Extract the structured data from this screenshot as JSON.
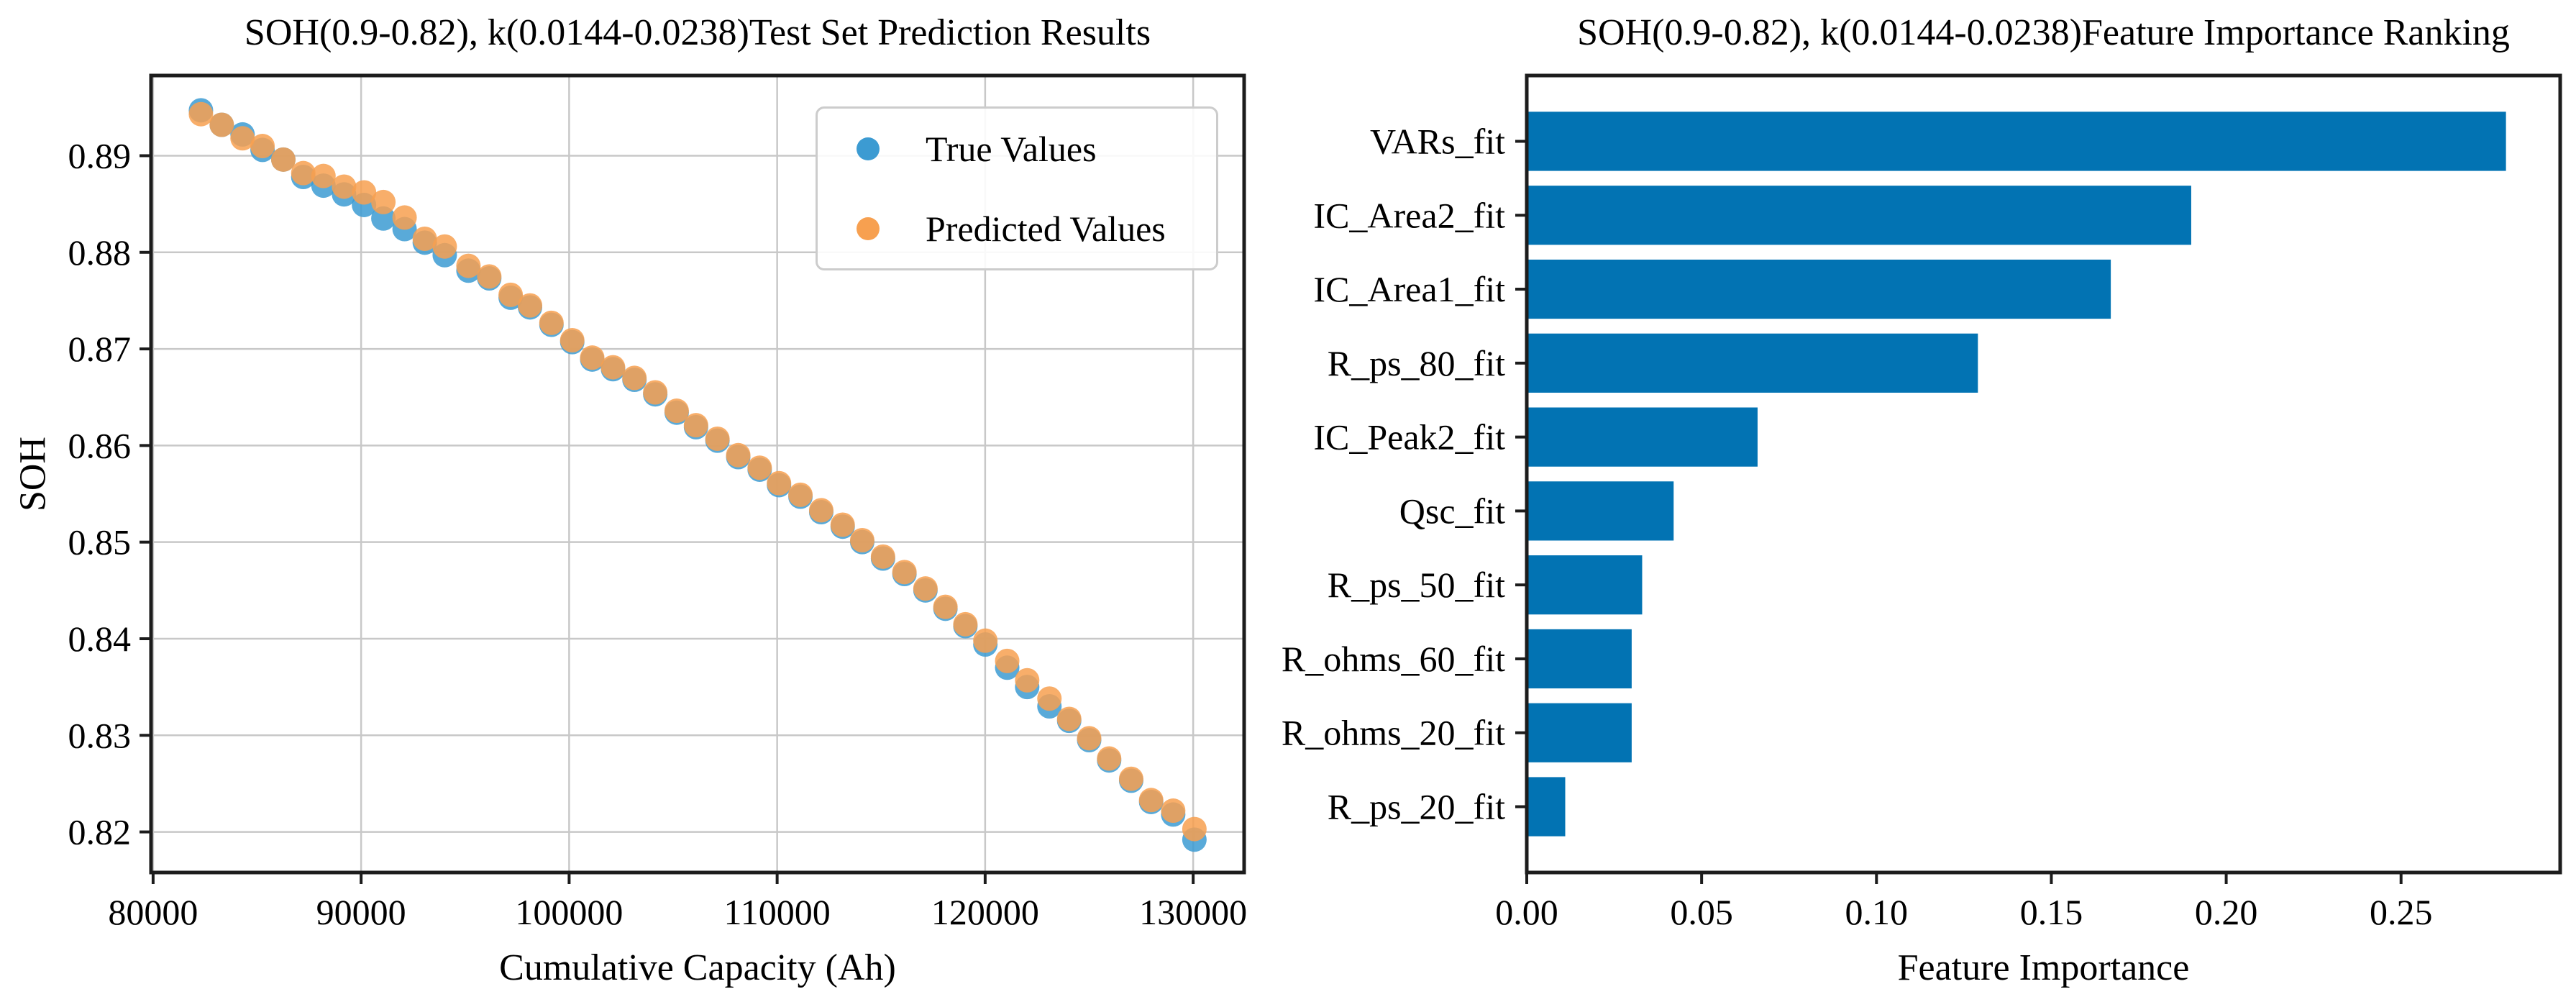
{
  "figure": {
    "background": "#ffffff",
    "spine_color": "#1c1c1c",
    "grid_color": "#c8c8c8",
    "text_color": "#000000"
  },
  "chart_data": [
    {
      "type": "scatter",
      "title": "SOH(0.9-0.82), k(0.0144-0.0238)Test Set Prediction Results",
      "xlabel": "Cumulative Capacity (Ah)",
      "ylabel": "SOH",
      "xlim": [
        79900,
        132450
      ],
      "ylim": [
        0.8158,
        0.8983
      ],
      "grid": true,
      "xticks": {
        "values": [
          80000,
          90000,
          100000,
          110000,
          120000,
          130000
        ],
        "labels": [
          "80000",
          "90000",
          "100000",
          "110000",
          "120000",
          "130000"
        ]
      },
      "yticks": {
        "values": [
          0.82,
          0.83,
          0.84,
          0.85,
          0.86,
          0.87,
          0.88,
          0.89
        ],
        "labels": [
          "0.82",
          "0.83",
          "0.84",
          "0.85",
          "0.86",
          "0.87",
          "0.88",
          "0.89"
        ]
      },
      "legend": {
        "position": "upper right",
        "entries": [
          {
            "label": "True Values",
            "color": "#3c9bd2"
          },
          {
            "label": "Predicted Values",
            "color": "#f7a050"
          }
        ]
      },
      "series": [
        {
          "name": "True Values",
          "color": "#3c9bd2",
          "x": [
            82300,
            83300,
            84300,
            85260,
            86260,
            87220,
            88190,
            89180,
            90140,
            91070,
            92090,
            93060,
            94020,
            95160,
            96160,
            97190,
            98120,
            99150,
            100150,
            101110,
            102110,
            103140,
            104140,
            105170,
            106100,
            107130,
            108130,
            109160,
            110090,
            111120,
            112120,
            113150,
            114090,
            115090,
            116120,
            117130,
            118090,
            119050,
            120010,
            121060,
            122020,
            123090,
            124040,
            125000,
            125960,
            127020,
            127980,
            129040,
            130060
          ],
          "y": [
            0.8947,
            0.8932,
            0.8922,
            0.8906,
            0.8896,
            0.8878,
            0.8869,
            0.886,
            0.8849,
            0.8835,
            0.8824,
            0.881,
            0.8797,
            0.8781,
            0.8773,
            0.8753,
            0.8743,
            0.8725,
            0.8707,
            0.8689,
            0.8679,
            0.8668,
            0.8653,
            0.8634,
            0.8619,
            0.8605,
            0.8588,
            0.8575,
            0.8559,
            0.8547,
            0.8531,
            0.8516,
            0.85,
            0.8483,
            0.8467,
            0.845,
            0.8431,
            0.8413,
            0.8394,
            0.837,
            0.835,
            0.833,
            0.8315,
            0.8295,
            0.8274,
            0.8253,
            0.8231,
            0.8218,
            0.8192
          ]
        },
        {
          "name": "Predicted Values",
          "color": "#f7a050",
          "x": [
            82300,
            83300,
            84300,
            85260,
            86260,
            87220,
            88190,
            89180,
            90140,
            91070,
            92090,
            93060,
            94020,
            95160,
            96160,
            97190,
            98120,
            99150,
            100150,
            101110,
            102110,
            103140,
            104140,
            105170,
            106100,
            107130,
            108130,
            109160,
            110090,
            111120,
            112120,
            113150,
            114090,
            115090,
            116120,
            117130,
            118090,
            119050,
            120010,
            121060,
            122020,
            123090,
            124040,
            125000,
            125960,
            127020,
            127980,
            129040,
            130060
          ],
          "y": [
            0.8943,
            0.8932,
            0.8918,
            0.891,
            0.8896,
            0.8882,
            0.8879,
            0.8868,
            0.8862,
            0.8852,
            0.8836,
            0.8814,
            0.8806,
            0.8786,
            0.8775,
            0.8756,
            0.8745,
            0.8727,
            0.8709,
            0.8691,
            0.8681,
            0.867,
            0.8655,
            0.8636,
            0.8621,
            0.8607,
            0.859,
            0.8577,
            0.8561,
            0.8549,
            0.8533,
            0.8518,
            0.8502,
            0.8485,
            0.8469,
            0.8452,
            0.8433,
            0.8415,
            0.8398,
            0.8377,
            0.8357,
            0.8338,
            0.8317,
            0.8297,
            0.8276,
            0.8255,
            0.8233,
            0.8222,
            0.8203
          ]
        }
      ]
    },
    {
      "type": "bar",
      "orientation": "horizontal",
      "title": "SOH(0.9-0.82), k(0.0144-0.0238)Feature Importance Ranking",
      "xlabel": "Feature Importance",
      "categories": [
        "VARs_fit",
        "IC_Area2_fit",
        "IC_Area1_fit",
        "R_ps_80_fit",
        "IC_Peak2_fit",
        "Qsc_fit",
        "R_ps_50_fit",
        "R_ohms_60_fit",
        "R_ohms_20_fit",
        "R_ps_20_fit"
      ],
      "values": [
        0.28,
        0.19,
        0.167,
        0.129,
        0.066,
        0.042,
        0.033,
        0.03,
        0.03,
        0.011
      ],
      "bar_color": "#0273b3",
      "xlim": [
        0,
        0.2955
      ],
      "grid": false,
      "xticks": {
        "values": [
          0,
          0.05,
          0.1,
          0.15,
          0.2,
          0.25
        ],
        "labels": [
          "0.00",
          "0.05",
          "0.10",
          "0.15",
          "0.20",
          "0.25"
        ]
      }
    }
  ]
}
